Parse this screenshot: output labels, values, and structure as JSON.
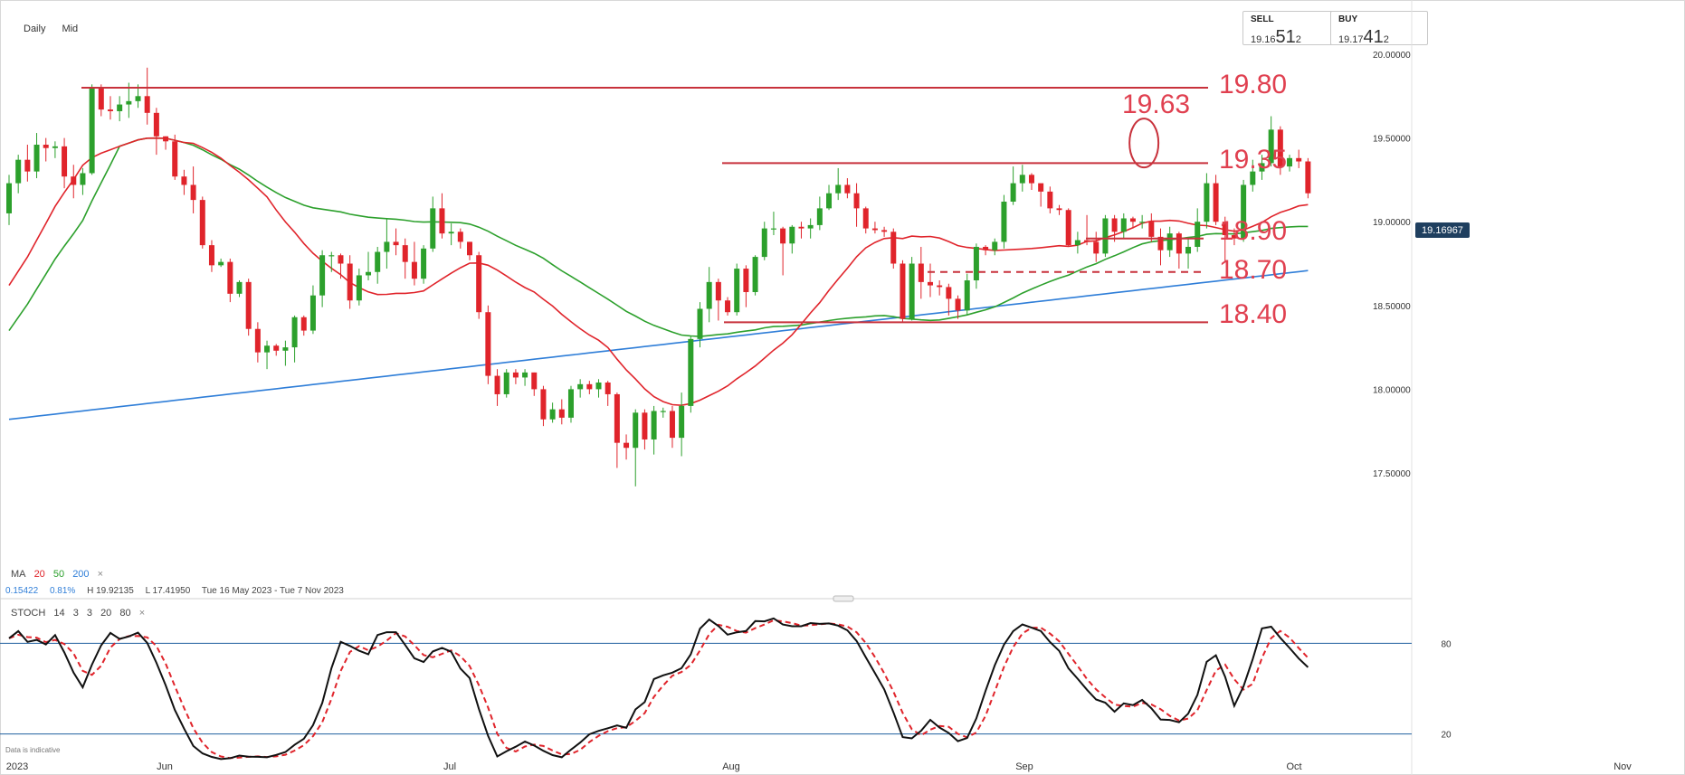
{
  "toolbar": {
    "interval": "Daily",
    "price_type": "Mid"
  },
  "sell": {
    "label": "SELL",
    "prefix": "19.16",
    "big": "51",
    "sub": "2"
  },
  "buy": {
    "label": "BUY",
    "prefix": "19.17",
    "big": "41",
    "sub": "2"
  },
  "current_price": "19.16967",
  "ma_legend": {
    "label": "MA",
    "p1": "20",
    "p2": "50",
    "p3": "200",
    "close": "×"
  },
  "stats": {
    "change": "0.15422",
    "change_pct": "0.81%",
    "high": "H 19.92135",
    "low": "L 17.41950",
    "range": "Tue 16 May 2023 - Tue 7 Nov 2023"
  },
  "stoch_legend": {
    "label": "STOCH",
    "k": "14",
    "d": "3",
    "s": "3",
    "lo": "20",
    "hi": "80",
    "close": "×"
  },
  "disclaimer": "Data is indicative",
  "colors": {
    "up": "#2ca02c",
    "down": "#e0242b",
    "ma20": "#e0242b",
    "ma50": "#2ca02c",
    "ma200": "#2f7ed8",
    "level": "#c8323c",
    "level_text": "#e04050",
    "stoch_k": "#111111",
    "stoch_d": "#e0242b",
    "stoch_level": "#1f5f9f",
    "price_badge": "#1f3f5f"
  },
  "chart_data": {
    "type": "candlestick",
    "title": "",
    "x_ticks": [
      "2023",
      "Jun",
      "Jul",
      "Aug",
      "Sep",
      "Oct",
      "Nov"
    ],
    "y_ticks": [
      "20.00000",
      "19.50000",
      "19.00000",
      "18.50000",
      "18.00000",
      "17.50000"
    ],
    "ylim": [
      17.4,
      20.1
    ],
    "levels": [
      {
        "value": 19.8,
        "label": "19.80",
        "style": "solid"
      },
      {
        "value": 19.35,
        "label": "19.35",
        "style": "solid"
      },
      {
        "value": 18.9,
        "label": "18.90",
        "style": "solid"
      },
      {
        "value": 18.7,
        "label": "18.70",
        "style": "dashed"
      },
      {
        "value": 18.4,
        "label": "18.40",
        "style": "solid"
      }
    ],
    "highlight": {
      "label": "19.63",
      "value": 19.63,
      "date_index": 123
    },
    "candles": [
      [
        19.05,
        19.23,
        18.98,
        19.28
      ],
      [
        19.23,
        19.37,
        19.17,
        19.4
      ],
      [
        19.37,
        19.3,
        19.24,
        19.46
      ],
      [
        19.3,
        19.46,
        19.26,
        19.53
      ],
      [
        19.46,
        19.44,
        19.36,
        19.5
      ],
      [
        19.44,
        19.45,
        19.38,
        19.48
      ],
      [
        19.45,
        19.27,
        19.2,
        19.5
      ],
      [
        19.27,
        19.22,
        19.14,
        19.34
      ],
      [
        19.22,
        19.29,
        19.16,
        19.32
      ],
      [
        19.29,
        19.8,
        19.28,
        19.82
      ],
      [
        19.8,
        19.67,
        19.63,
        19.82
      ],
      [
        19.67,
        19.66,
        19.61,
        19.75
      ],
      [
        19.66,
        19.7,
        19.6,
        19.75
      ],
      [
        19.7,
        19.72,
        19.62,
        19.83
      ],
      [
        19.72,
        19.75,
        19.68,
        19.82
      ],
      [
        19.75,
        19.65,
        19.58,
        19.92
      ],
      [
        19.65,
        19.51,
        19.4,
        19.68
      ],
      [
        19.51,
        19.48,
        19.43,
        19.51
      ],
      [
        19.48,
        19.27,
        19.25,
        19.52
      ],
      [
        19.27,
        19.22,
        19.16,
        19.31
      ],
      [
        19.22,
        19.13,
        19.05,
        19.33
      ],
      [
        19.13,
        18.86,
        18.84,
        19.15
      ],
      [
        18.86,
        18.74,
        18.7,
        18.89
      ],
      [
        18.74,
        18.76,
        18.73,
        18.78
      ],
      [
        18.76,
        18.57,
        18.52,
        18.78
      ],
      [
        18.57,
        18.64,
        18.55,
        18.65
      ],
      [
        18.64,
        18.36,
        18.32,
        18.66
      ],
      [
        18.36,
        18.22,
        18.16,
        18.4
      ],
      [
        18.22,
        18.26,
        18.12,
        18.29
      ],
      [
        18.26,
        18.23,
        18.2,
        18.27
      ],
      [
        18.23,
        18.25,
        18.14,
        18.29
      ],
      [
        18.25,
        18.43,
        18.16,
        18.44
      ],
      [
        18.43,
        18.35,
        18.32,
        18.44
      ],
      [
        18.35,
        18.56,
        18.33,
        18.62
      ],
      [
        18.56,
        18.8,
        18.49,
        18.83
      ],
      [
        18.8,
        18.8,
        18.7,
        18.82
      ],
      [
        18.8,
        18.75,
        18.66,
        18.81
      ],
      [
        18.75,
        18.53,
        18.48,
        18.8
      ],
      [
        18.53,
        18.68,
        18.5,
        18.72
      ],
      [
        18.68,
        18.7,
        18.65,
        18.82
      ],
      [
        18.7,
        18.82,
        18.63,
        18.85
      ],
      [
        18.82,
        18.88,
        18.72,
        19.02
      ],
      [
        18.88,
        18.86,
        18.8,
        18.96
      ],
      [
        18.86,
        18.76,
        18.66,
        18.9
      ],
      [
        18.76,
        18.66,
        18.62,
        18.88
      ],
      [
        18.66,
        18.84,
        18.63,
        18.86
      ],
      [
        18.84,
        19.08,
        18.82,
        19.15
      ],
      [
        19.08,
        18.93,
        18.9,
        19.17
      ],
      [
        18.93,
        18.94,
        18.86,
        18.99
      ],
      [
        18.94,
        18.88,
        18.84,
        18.96
      ],
      [
        18.88,
        18.8,
        18.77,
        18.88
      ],
      [
        18.8,
        18.46,
        18.42,
        18.82
      ],
      [
        18.46,
        18.08,
        18.03,
        18.5
      ],
      [
        18.08,
        17.97,
        17.9,
        18.12
      ],
      [
        17.97,
        18.1,
        17.95,
        18.12
      ],
      [
        18.1,
        18.07,
        18.03,
        18.12
      ],
      [
        18.07,
        18.1,
        18.02,
        18.12
      ],
      [
        18.1,
        18.0,
        17.96,
        18.1
      ],
      [
        18.0,
        17.82,
        17.78,
        18.02
      ],
      [
        17.82,
        17.88,
        17.8,
        17.92
      ],
      [
        17.88,
        17.83,
        17.79,
        17.94
      ],
      [
        17.83,
        18.0,
        17.8,
        18.02
      ],
      [
        18.0,
        18.03,
        17.95,
        18.06
      ],
      [
        18.03,
        18.0,
        17.97,
        18.05
      ],
      [
        18.0,
        18.04,
        17.95,
        18.06
      ],
      [
        18.04,
        17.97,
        17.9,
        18.05
      ],
      [
        17.97,
        17.68,
        17.53,
        17.98
      ],
      [
        17.68,
        17.65,
        17.58,
        17.73
      ],
      [
        17.65,
        17.86,
        17.42,
        17.88
      ],
      [
        17.86,
        17.7,
        17.64,
        17.88
      ],
      [
        17.7,
        17.87,
        17.61,
        17.9
      ],
      [
        17.87,
        17.87,
        17.83,
        17.89
      ],
      [
        17.87,
        17.71,
        17.65,
        17.9
      ],
      [
        17.71,
        17.9,
        17.6,
        17.98
      ],
      [
        17.9,
        18.3,
        17.86,
        18.32
      ],
      [
        18.3,
        18.48,
        18.25,
        18.52
      ],
      [
        18.48,
        18.64,
        18.4,
        18.73
      ],
      [
        18.64,
        18.53,
        18.41,
        18.66
      ],
      [
        18.53,
        18.46,
        18.44,
        18.55
      ],
      [
        18.46,
        18.72,
        18.44,
        18.75
      ],
      [
        18.72,
        18.58,
        18.49,
        18.74
      ],
      [
        18.58,
        18.79,
        18.56,
        18.8
      ],
      [
        18.79,
        18.96,
        18.77,
        19.0
      ],
      [
        18.96,
        18.96,
        18.92,
        19.06
      ],
      [
        18.96,
        18.87,
        18.68,
        18.97
      ],
      [
        18.87,
        18.97,
        18.81,
        18.98
      ],
      [
        18.97,
        18.96,
        18.9,
        19.0
      ],
      [
        18.96,
        18.98,
        18.9,
        19.02
      ],
      [
        18.98,
        19.08,
        18.95,
        19.15
      ],
      [
        19.08,
        19.17,
        19.07,
        19.22
      ],
      [
        19.17,
        19.22,
        19.13,
        19.32
      ],
      [
        19.22,
        19.17,
        19.14,
        19.26
      ],
      [
        19.17,
        19.08,
        18.97,
        19.23
      ],
      [
        19.08,
        18.96,
        18.93,
        19.09
      ],
      [
        18.96,
        18.95,
        18.93,
        19.0
      ],
      [
        18.95,
        18.94,
        18.91,
        18.97
      ],
      [
        18.94,
        18.75,
        18.72,
        18.96
      ],
      [
        18.75,
        18.42,
        18.4,
        18.77
      ],
      [
        18.42,
        18.75,
        18.41,
        18.79
      ],
      [
        18.75,
        18.64,
        18.54,
        18.85
      ],
      [
        18.64,
        18.62,
        18.55,
        18.75
      ],
      [
        18.62,
        18.61,
        18.56,
        18.65
      ],
      [
        18.61,
        18.54,
        18.44,
        18.63
      ],
      [
        18.54,
        18.47,
        18.42,
        18.56
      ],
      [
        18.47,
        18.65,
        18.44,
        18.69
      ],
      [
        18.65,
        18.85,
        18.6,
        18.87
      ],
      [
        18.85,
        18.83,
        18.8,
        18.86
      ],
      [
        18.83,
        18.88,
        18.8,
        18.9
      ],
      [
        18.88,
        19.12,
        18.84,
        19.16
      ],
      [
        19.12,
        19.23,
        19.1,
        19.33
      ],
      [
        19.23,
        19.28,
        19.18,
        19.34
      ],
      [
        19.28,
        19.23,
        19.19,
        19.29
      ],
      [
        19.23,
        19.18,
        19.09,
        19.21
      ],
      [
        19.18,
        19.08,
        19.05,
        19.21
      ],
      [
        19.08,
        19.07,
        19.04,
        19.1
      ],
      [
        19.07,
        18.86,
        18.85,
        19.08
      ],
      [
        18.86,
        18.89,
        18.81,
        18.94
      ],
      [
        18.89,
        18.88,
        18.86,
        19.04
      ],
      [
        18.88,
        18.81,
        18.76,
        18.94
      ],
      [
        18.81,
        19.02,
        18.79,
        19.04
      ],
      [
        19.02,
        18.94,
        18.88,
        19.04
      ],
      [
        18.94,
        19.02,
        18.9,
        19.05
      ],
      [
        19.02,
        19.0,
        18.96,
        19.03
      ],
      [
        19.0,
        19.0,
        18.96,
        19.04
      ],
      [
        19.0,
        18.91,
        18.88,
        19.05
      ],
      [
        18.91,
        18.83,
        18.74,
        18.96
      ],
      [
        18.83,
        18.93,
        18.79,
        18.97
      ],
      [
        18.93,
        18.81,
        18.72,
        18.94
      ],
      [
        18.81,
        18.85,
        18.72,
        18.9
      ],
      [
        18.85,
        19.0,
        18.82,
        19.08
      ],
      [
        19.0,
        19.23,
        18.96,
        19.29
      ],
      [
        19.23,
        19.0,
        18.98,
        19.28
      ],
      [
        19.0,
        18.92,
        18.76,
        19.03
      ],
      [
        18.92,
        18.9,
        18.86,
        18.96
      ],
      [
        18.9,
        19.22,
        18.88,
        19.25
      ],
      [
        19.22,
        19.3,
        19.18,
        19.37
      ],
      [
        19.3,
        19.35,
        19.25,
        19.4
      ],
      [
        19.35,
        19.55,
        19.33,
        19.63
      ],
      [
        19.55,
        19.33,
        19.28,
        19.57
      ],
      [
        19.33,
        19.38,
        19.3,
        19.4
      ],
      [
        19.38,
        19.36,
        19.32,
        19.43
      ],
      [
        19.36,
        19.17,
        19.14,
        19.38
      ]
    ]
  }
}
